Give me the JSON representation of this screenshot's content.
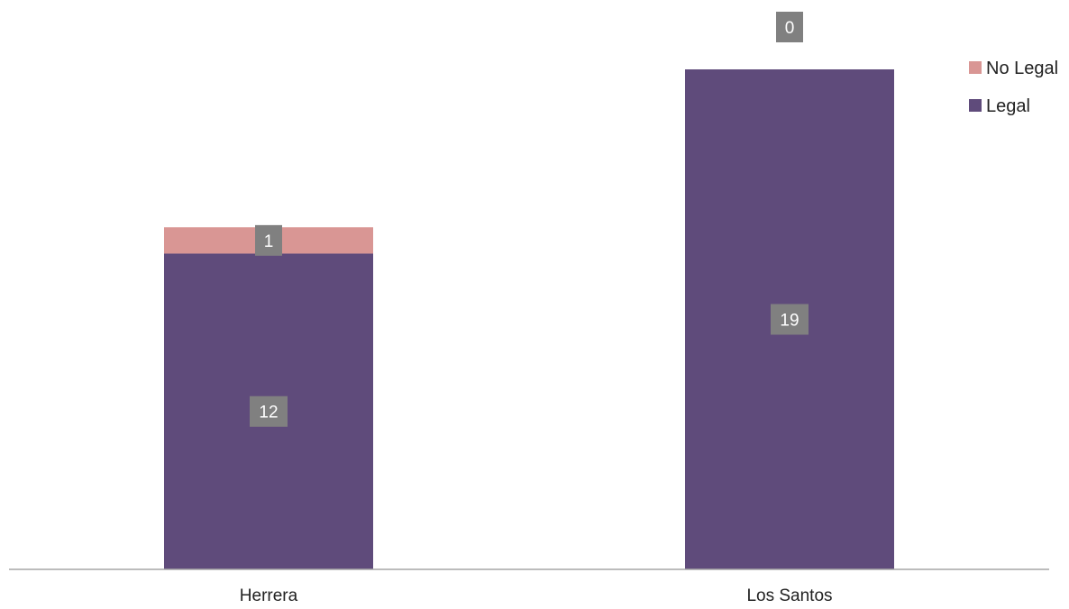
{
  "chart_data": {
    "type": "bar",
    "stacked": true,
    "categories": [
      "Herrera",
      "Los Santos"
    ],
    "series": [
      {
        "name": "Legal",
        "values": [
          12,
          19
        ],
        "color": "#5f4b7b"
      },
      {
        "name": "No Legal",
        "values": [
          1,
          0
        ],
        "color": "#d99694"
      }
    ],
    "ylim": [
      0,
      19
    ],
    "grid": false,
    "legend_position": "top-right",
    "data_label_color": "#808080",
    "axis_color": "#a6a6a6"
  }
}
